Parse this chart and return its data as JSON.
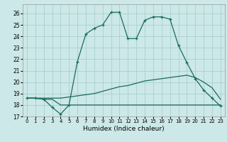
{
  "xlabel": "Humidex (Indice chaleur)",
  "bg_color": "#cce8e8",
  "grid_color": "#aad0d0",
  "line_color": "#1a6b5a",
  "xlim": [
    -0.5,
    23.5
  ],
  "ylim": [
    17.0,
    26.8
  ],
  "yticks": [
    17,
    18,
    19,
    20,
    21,
    22,
    23,
    24,
    25,
    26
  ],
  "xticks": [
    0,
    1,
    2,
    3,
    4,
    5,
    6,
    7,
    8,
    9,
    10,
    11,
    12,
    13,
    14,
    15,
    16,
    17,
    18,
    19,
    20,
    21,
    22,
    23
  ],
  "line1_x": [
    0,
    1,
    2,
    3,
    4,
    5,
    6,
    7,
    8,
    9,
    10,
    11,
    12,
    13,
    14,
    15,
    16,
    17,
    18,
    19,
    20,
    21,
    22,
    23
  ],
  "line1_y": [
    18.6,
    18.6,
    18.5,
    17.8,
    17.2,
    18.0,
    21.8,
    24.2,
    24.7,
    25.0,
    26.1,
    26.1,
    23.8,
    23.8,
    25.4,
    25.7,
    25.7,
    25.5,
    23.2,
    21.7,
    20.3,
    19.3,
    18.6,
    17.9
  ],
  "line2_x": [
    0,
    1,
    2,
    3,
    4,
    5,
    6,
    7,
    8,
    9,
    10,
    11,
    12,
    13,
    14,
    15,
    16,
    17,
    18,
    19,
    20,
    21,
    22,
    23
  ],
  "line2_y": [
    18.6,
    18.6,
    18.5,
    18.5,
    18.0,
    18.0,
    18.0,
    18.0,
    18.0,
    18.0,
    18.0,
    18.0,
    18.0,
    18.0,
    18.0,
    18.0,
    18.0,
    18.0,
    18.0,
    18.0,
    18.0,
    18.0,
    18.0,
    18.0
  ],
  "line3_x": [
    0,
    1,
    2,
    3,
    4,
    5,
    6,
    7,
    8,
    9,
    10,
    11,
    12,
    13,
    14,
    15,
    16,
    17,
    18,
    19,
    20,
    21,
    22,
    23
  ],
  "line3_y": [
    18.6,
    18.6,
    18.6,
    18.6,
    18.6,
    18.7,
    18.8,
    18.9,
    19.0,
    19.2,
    19.4,
    19.6,
    19.7,
    19.9,
    20.1,
    20.2,
    20.3,
    20.4,
    20.5,
    20.6,
    20.4,
    20.0,
    19.5,
    18.5
  ]
}
